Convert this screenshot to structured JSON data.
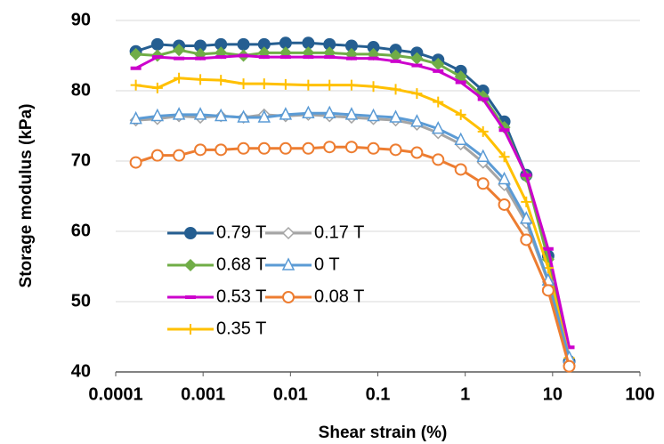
{
  "chart_data": {
    "type": "line",
    "x_label": "Shear strain (%)",
    "y_label": "Storage modulus (kPa)",
    "x_scale": "log",
    "xlim": [
      0.0001,
      100
    ],
    "xticks": [
      0.0001,
      0.001,
      0.01,
      0.1,
      1,
      10,
      100
    ],
    "ylim": [
      40,
      90
    ],
    "yticks": [
      40,
      50,
      60,
      70,
      80,
      90
    ],
    "grid": true,
    "legend": "lower left",
    "x": [
      0.00017,
      0.0003,
      0.00053,
      0.00093,
      0.0016,
      0.0029,
      0.005,
      0.0088,
      0.016,
      0.028,
      0.05,
      0.089,
      0.16,
      0.28,
      0.49,
      0.89,
      1.6,
      2.8,
      5,
      8.9,
      15.5
    ],
    "series": [
      {
        "name": "0.79 T",
        "color": "#255e91",
        "marker": "circle",
        "values": [
          85.6,
          86.6,
          86.4,
          86.4,
          86.6,
          86.6,
          86.6,
          86.8,
          86.8,
          86.6,
          86.4,
          86.2,
          85.8,
          85.4,
          84.4,
          82.8,
          80.0,
          75.6,
          68.0,
          56.5,
          41.5
        ]
      },
      {
        "name": "0.68 T",
        "color": "#70ad47",
        "marker": "diamond",
        "values": [
          85.2,
          85.0,
          85.8,
          85.2,
          85.4,
          85.0,
          85.4,
          85.4,
          85.4,
          85.4,
          85.2,
          85.2,
          85.0,
          84.6,
          83.8,
          82.0,
          79.2,
          74.8,
          67.8,
          56.0,
          41.0
        ]
      },
      {
        "name": "0.53 T",
        "color": "#cc00cc",
        "marker": "dash",
        "values": [
          83.2,
          84.8,
          84.6,
          84.6,
          84.8,
          85.0,
          84.8,
          84.8,
          84.8,
          84.8,
          84.6,
          84.6,
          84.2,
          83.6,
          82.8,
          81.2,
          78.8,
          74.4,
          68.0,
          57.5,
          43.5
        ]
      },
      {
        "name": "0.35 T",
        "color": "#ffc000",
        "marker": "plus",
        "values": [
          80.8,
          80.4,
          81.8,
          81.6,
          81.5,
          81.0,
          81.0,
          80.9,
          80.8,
          80.8,
          80.8,
          80.6,
          80.2,
          79.6,
          78.4,
          76.6,
          74.2,
          70.6,
          64.2,
          54.8,
          42.0
        ]
      },
      {
        "name": "0.17 T",
        "color": "#a5a5a5",
        "marker": "open-diamond",
        "values": [
          75.8,
          76.0,
          76.4,
          76.2,
          76.4,
          76.2,
          76.6,
          76.4,
          76.6,
          76.4,
          76.2,
          76.0,
          75.8,
          75.2,
          74.0,
          72.4,
          69.8,
          66.6,
          61.2,
          52.8,
          41.0
        ]
      },
      {
        "name": "0 T",
        "color": "#5b9bd5",
        "marker": "open-triangle",
        "values": [
          76.0,
          76.4,
          76.6,
          76.6,
          76.4,
          76.2,
          76.2,
          76.6,
          76.8,
          76.8,
          76.6,
          76.4,
          76.2,
          75.6,
          74.6,
          73.0,
          70.6,
          67.4,
          61.8,
          53.0,
          42.0
        ]
      },
      {
        "name": "0.08 T",
        "color": "#ed7d31",
        "marker": "open-circle",
        "values": [
          69.8,
          70.8,
          70.8,
          71.6,
          71.6,
          71.8,
          71.8,
          71.8,
          71.8,
          72.0,
          72.0,
          71.8,
          71.6,
          71.2,
          70.2,
          68.8,
          66.8,
          63.8,
          58.8,
          51.6,
          40.8
        ]
      }
    ]
  }
}
